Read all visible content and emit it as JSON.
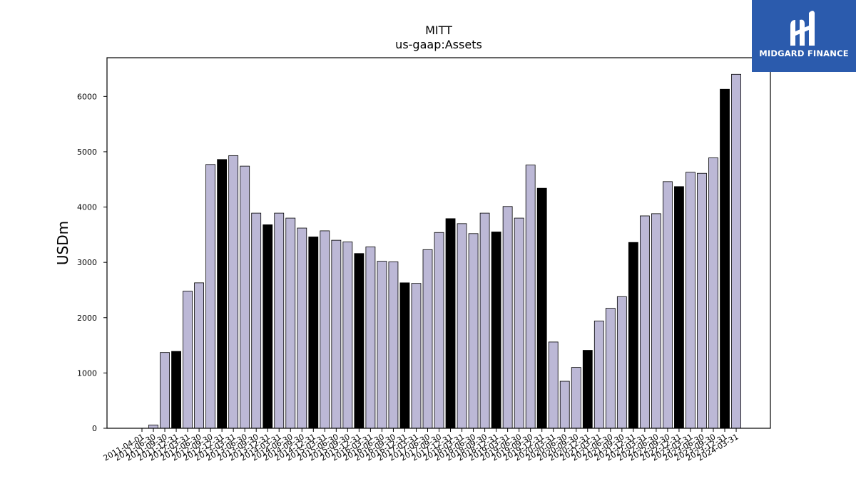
{
  "brand": {
    "name": "MIDGARD FINANCE",
    "bg_color": "#2b5bad",
    "icon": "midgard-logo-icon"
  },
  "chart_data": {
    "type": "bar",
    "title": "MITT",
    "subtitle": "us-gaap:Assets",
    "xlabel": "",
    "ylabel": "USDm",
    "ylim": [
      0,
      6700
    ],
    "yticks": [
      0,
      1000,
      2000,
      3000,
      4000,
      5000,
      6000
    ],
    "grid": false,
    "colors": {
      "quarter": "#bcb8d6",
      "year_end": "#000000",
      "edge": "#000000"
    },
    "tick_labels": [
      "2011-04-01",
      "2011-06-30",
      "2011-09-30",
      "2011-12-31",
      "2012-03-31",
      "2012-06-30",
      "2012-09-30",
      "2012-12-31",
      "2013-03-31",
      "2013-06-30",
      "2013-09-30",
      "2013-12-31",
      "2014-03-31",
      "2014-06-30",
      "2014-09-30",
      "2014-12-31",
      "2015-03-31",
      "2015-06-30",
      "2015-09-30",
      "2015-12-31",
      "2016-03-31",
      "2016-06-30",
      "2016-09-30",
      "2016-12-31",
      "2017-03-31",
      "2017-06-30",
      "2017-09-30",
      "2017-12-31",
      "2018-03-31",
      "2018-06-30",
      "2018-09-30",
      "2018-12-31",
      "2019-03-31",
      "2019-06-30",
      "2019-09-30",
      "2019-12-31",
      "2020-03-31",
      "2020-06-30",
      "2020-09-30",
      "2020-12-31",
      "2021-03-31",
      "2021-06-30",
      "2021-09-30",
      "2021-12-31",
      "2022-03-31",
      "2022-06-30",
      "2022-09-30",
      "2022-12-31",
      "2023-03-31",
      "2023-06-30",
      "2023-09-30",
      "2023-12-31",
      "2024-03-31"
    ],
    "categories": [
      "2011-04-01",
      "2011-06-30",
      "2011-09-30",
      "2011-12-31",
      "2012-03-31",
      "2012-06-30",
      "2012-09-30",
      "2012-12-31",
      "2013-03-31",
      "2013-06-30",
      "2013-09-30",
      "2013-12-31",
      "2014-03-31",
      "2014-06-30",
      "2014-09-30",
      "2014-12-31",
      "2015-03-31",
      "2015-06-30",
      "2015-09-30",
      "2015-12-31",
      "2016-03-31",
      "2016-06-30",
      "2016-09-30",
      "2016-12-31",
      "2017-03-31",
      "2017-06-30",
      "2017-09-30",
      "2017-12-31",
      "2018-03-31",
      "2018-06-30",
      "2018-09-30",
      "2018-12-31",
      "2019-03-31",
      "2019-06-30",
      "2019-09-30",
      "2019-12-31",
      "2020-03-31",
      "2020-06-30",
      "2020-09-30",
      "2020-12-31",
      "2021-03-31",
      "2021-06-30",
      "2021-09-30",
      "2021-12-31",
      "2022-03-31",
      "2022-06-30",
      "2022-09-30",
      "2022-12-31",
      "2023-03-31",
      "2023-06-30",
      "2023-09-30",
      "2023-12-31",
      "2024-03-31"
    ],
    "values": [
      0,
      60,
      1370,
      1390,
      2480,
      2630,
      4770,
      4860,
      4930,
      4740,
      3890,
      3680,
      3890,
      3800,
      3620,
      3460,
      3570,
      3400,
      3370,
      3160,
      3280,
      3020,
      3010,
      2630,
      2620,
      3230,
      3540,
      3790,
      3700,
      3520,
      3890,
      3550,
      4010,
      3800,
      4760,
      4340,
      1560,
      850,
      1100,
      1410,
      1940,
      2170,
      2380,
      3360,
      3840,
      3880,
      4460,
      4370,
      4630,
      4610,
      4890,
      6130,
      6400
    ],
    "highlight": [
      false,
      false,
      false,
      true,
      false,
      false,
      false,
      true,
      false,
      false,
      false,
      true,
      false,
      false,
      false,
      true,
      false,
      false,
      false,
      true,
      false,
      false,
      false,
      true,
      false,
      false,
      false,
      true,
      false,
      false,
      false,
      true,
      false,
      false,
      false,
      true,
      false,
      false,
      false,
      true,
      false,
      false,
      false,
      true,
      false,
      false,
      false,
      true,
      false,
      false,
      false,
      true,
      false
    ]
  }
}
